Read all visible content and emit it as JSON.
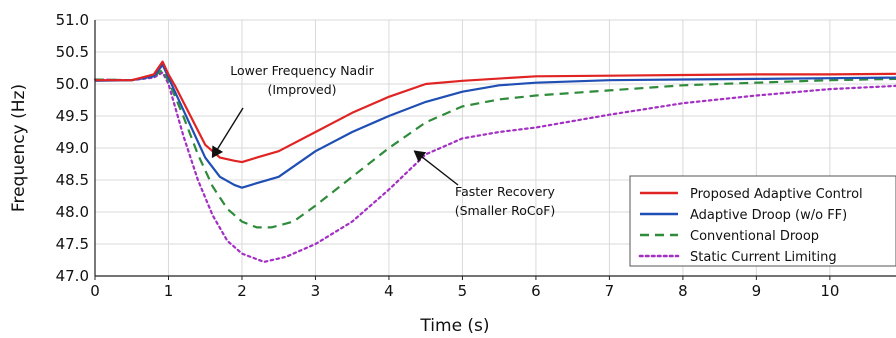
{
  "chart_data": {
    "type": "line",
    "xlabel": "Time (s)",
    "ylabel": "Frequency (Hz)",
    "xlim": [
      0,
      10.9
    ],
    "ylim": [
      47.0,
      51.0
    ],
    "x_ticks": [
      0,
      1,
      2,
      3,
      4,
      5,
      6,
      7,
      8,
      9,
      10
    ],
    "y_ticks": [
      "47.0",
      "47.5",
      "48.0",
      "48.5",
      "49.0",
      "49.5",
      "50.0",
      "50.5",
      "51.0"
    ],
    "grid": true,
    "legend_position": "right",
    "series": [
      {
        "name": "Proposed Adaptive Control",
        "color": "#e02424",
        "style": "solid",
        "points": [
          [
            0,
            50.06
          ],
          [
            0.5,
            50.06
          ],
          [
            0.8,
            50.15
          ],
          [
            0.92,
            50.35
          ],
          [
            1.0,
            50.15
          ],
          [
            1.1,
            49.95
          ],
          [
            1.3,
            49.5
          ],
          [
            1.5,
            49.05
          ],
          [
            1.7,
            48.85
          ],
          [
            1.9,
            48.8
          ],
          [
            2.0,
            48.78
          ],
          [
            2.2,
            48.85
          ],
          [
            2.5,
            48.95
          ],
          [
            3.0,
            49.25
          ],
          [
            3.5,
            49.55
          ],
          [
            4.0,
            49.8
          ],
          [
            4.5,
            50.0
          ],
          [
            5.0,
            50.05
          ],
          [
            6.0,
            50.12
          ],
          [
            7.0,
            50.13
          ],
          [
            8.0,
            50.14
          ],
          [
            9.0,
            50.15
          ],
          [
            10.0,
            50.15
          ],
          [
            10.9,
            50.16
          ]
        ]
      },
      {
        "name": "Adaptive Droop (w/o FF)",
        "color": "#1f4fb4",
        "style": "solid",
        "points": [
          [
            0,
            50.05
          ],
          [
            0.5,
            50.06
          ],
          [
            0.8,
            50.12
          ],
          [
            0.92,
            50.3
          ],
          [
            1.0,
            50.1
          ],
          [
            1.1,
            49.85
          ],
          [
            1.3,
            49.35
          ],
          [
            1.5,
            48.85
          ],
          [
            1.7,
            48.55
          ],
          [
            1.9,
            48.42
          ],
          [
            2.0,
            48.38
          ],
          [
            2.2,
            48.45
          ],
          [
            2.5,
            48.55
          ],
          [
            3.0,
            48.95
          ],
          [
            3.5,
            49.25
          ],
          [
            4.0,
            49.5
          ],
          [
            4.5,
            49.72
          ],
          [
            5.0,
            49.88
          ],
          [
            5.5,
            49.98
          ],
          [
            6.0,
            50.02
          ],
          [
            7.0,
            50.06
          ],
          [
            8.0,
            50.07
          ],
          [
            9.0,
            50.08
          ],
          [
            10.0,
            50.09
          ],
          [
            10.9,
            50.1
          ]
        ]
      },
      {
        "name": "Conventional Droop",
        "color": "#2e8b3a",
        "style": "dashed",
        "points": [
          [
            0,
            50.07
          ],
          [
            0.5,
            50.06
          ],
          [
            0.8,
            50.12
          ],
          [
            0.92,
            50.22
          ],
          [
            1.0,
            50.05
          ],
          [
            1.2,
            49.5
          ],
          [
            1.4,
            48.9
          ],
          [
            1.6,
            48.4
          ],
          [
            1.8,
            48.05
          ],
          [
            2.0,
            47.85
          ],
          [
            2.2,
            47.76
          ],
          [
            2.4,
            47.76
          ],
          [
            2.7,
            47.85
          ],
          [
            3.0,
            48.1
          ],
          [
            3.5,
            48.55
          ],
          [
            4.0,
            49.0
          ],
          [
            4.5,
            49.4
          ],
          [
            5.0,
            49.65
          ],
          [
            5.5,
            49.76
          ],
          [
            6.0,
            49.82
          ],
          [
            7.0,
            49.9
          ],
          [
            8.0,
            49.98
          ],
          [
            9.0,
            50.02
          ],
          [
            10.0,
            50.06
          ],
          [
            10.9,
            50.08
          ]
        ]
      },
      {
        "name": "Static Current Limiting",
        "color": "#a32fc4",
        "style": "dotted",
        "points": [
          [
            0,
            50.07
          ],
          [
            0.5,
            50.06
          ],
          [
            0.8,
            50.1
          ],
          [
            0.92,
            50.18
          ],
          [
            1.0,
            50.0
          ],
          [
            1.2,
            49.2
          ],
          [
            1.4,
            48.5
          ],
          [
            1.6,
            47.95
          ],
          [
            1.8,
            47.55
          ],
          [
            2.0,
            47.35
          ],
          [
            2.3,
            47.22
          ],
          [
            2.6,
            47.3
          ],
          [
            3.0,
            47.5
          ],
          [
            3.5,
            47.85
          ],
          [
            4.0,
            48.35
          ],
          [
            4.5,
            48.9
          ],
          [
            5.0,
            49.15
          ],
          [
            5.5,
            49.25
          ],
          [
            6.0,
            49.32
          ],
          [
            7.0,
            49.52
          ],
          [
            8.0,
            49.7
          ],
          [
            9.0,
            49.82
          ],
          [
            10.0,
            49.92
          ],
          [
            10.9,
            49.97
          ]
        ]
      }
    ],
    "annotations": [
      {
        "lines": [
          "Lower Frequency Nadir",
          "(Improved)"
        ],
        "arrow_to": [
          1.6,
          48.86
        ]
      },
      {
        "lines": [
          "Faster Recovery",
          "(Smaller RoCoF)"
        ],
        "arrow_to": [
          4.35,
          48.95
        ]
      }
    ]
  }
}
